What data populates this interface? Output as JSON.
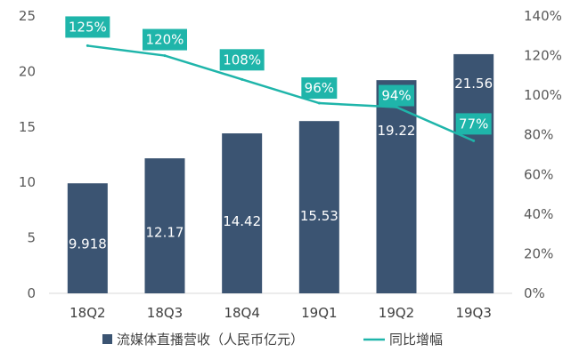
{
  "chart_data": {
    "type": "bar",
    "categories": [
      "18Q2",
      "18Q3",
      "18Q4",
      "19Q1",
      "19Q2",
      "19Q3"
    ],
    "series": [
      {
        "name": "流媒体直播营收（人民币亿元）",
        "type": "bar",
        "axis": "left",
        "values": [
          9.918,
          12.17,
          14.42,
          15.53,
          19.22,
          21.56
        ],
        "labels": [
          "9.918",
          "12.17",
          "14.42",
          "15.53",
          "19.22",
          "21.56"
        ],
        "color": "#3b5472"
      },
      {
        "name": "同比增幅",
        "type": "line",
        "axis": "right",
        "values": [
          125,
          120,
          108,
          96,
          94,
          77
        ],
        "labels": [
          "125%",
          "120%",
          "108%",
          "96%",
          "94%",
          "77%"
        ],
        "color": "#1fb5aa"
      }
    ],
    "y_left": {
      "min": 0,
      "max": 25,
      "ticks": [
        "0",
        "5",
        "10",
        "15",
        "20",
        "25"
      ]
    },
    "y_right": {
      "min": 0,
      "max": 140,
      "ticks": [
        "0%",
        "20%",
        "40%",
        "60%",
        "80%",
        "100%",
        "120%",
        "140%"
      ]
    },
    "grid": false,
    "legend": "bottom"
  }
}
